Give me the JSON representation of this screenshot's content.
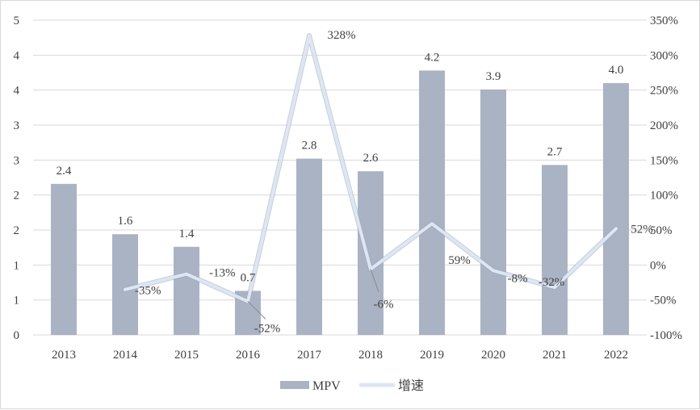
{
  "chart_data": {
    "type": "bar+line",
    "categories": [
      "2013",
      "2014",
      "2015",
      "2016",
      "2017",
      "2018",
      "2019",
      "2020",
      "2021",
      "2022"
    ],
    "series": [
      {
        "name": "MPV",
        "type": "bar",
        "axis": "left",
        "values": [
          2.4,
          1.6,
          1.4,
          0.7,
          2.8,
          2.6,
          4.2,
          3.9,
          2.7,
          4.0
        ],
        "labels": [
          "2.4",
          "1.6",
          "1.4",
          "0.7",
          "2.8",
          "2.6",
          "4.2",
          "3.9",
          "2.7",
          "4.0"
        ],
        "color": "#aab3c4"
      },
      {
        "name": "增速",
        "type": "line",
        "axis": "right",
        "values": [
          null,
          -35,
          -13,
          -52,
          328,
          -6,
          59,
          -8,
          -32,
          52
        ],
        "labels": [
          "",
          "-35%",
          "-13%",
          "-52%",
          "328%",
          "-6%",
          "59%",
          "-8%",
          "-32%",
          "52%"
        ],
        "color": "#dde7f3"
      }
    ],
    "y_left": {
      "ylim": [
        0,
        5
      ],
      "tick_labels": [
        "0",
        "1",
        "1",
        "2",
        "2",
        "3",
        "3",
        "4",
        "4",
        "5"
      ]
    },
    "y_right": {
      "ylim": [
        -100,
        350
      ],
      "ticks": [
        -100,
        -50,
        0,
        50,
        100,
        150,
        200,
        250,
        300,
        350
      ],
      "tick_labels": [
        "-100%",
        "-50%",
        "0%",
        "50%",
        "100%",
        "150%",
        "200%",
        "250%",
        "300%",
        "350%"
      ]
    },
    "grid": true,
    "legend": "bottom-center",
    "title": "",
    "xlabel": "",
    "ylabel": ""
  }
}
